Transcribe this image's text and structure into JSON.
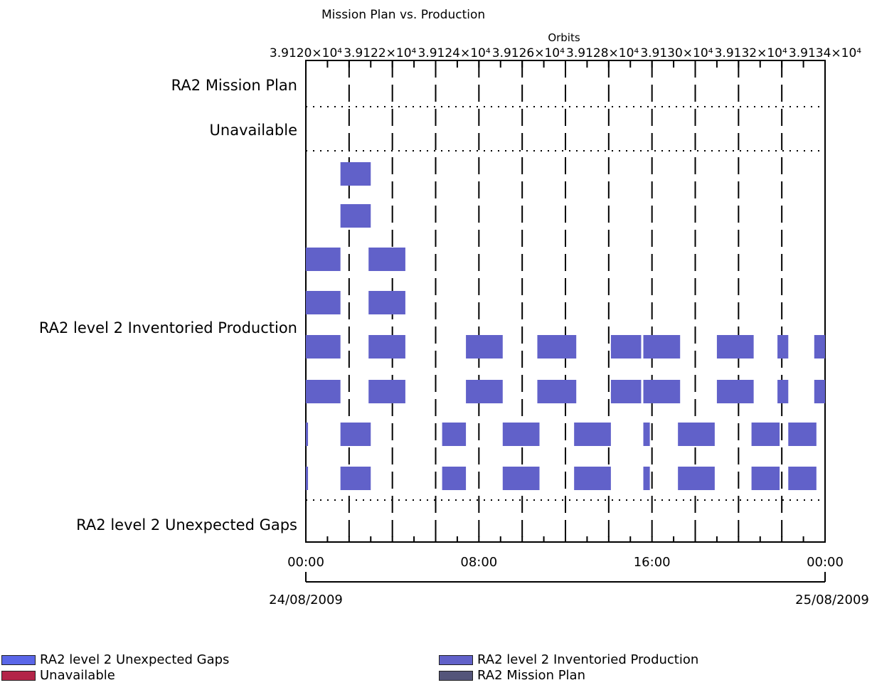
{
  "chart_data": {
    "type": "gantt",
    "title": "Mission Plan vs. Production",
    "top_axis_label": "Orbits",
    "top_ticks": [
      "3.9120×10⁴",
      "3.9122×10⁴",
      "3.9124×10⁴",
      "3.9126×10⁴",
      "3.9128×10⁴",
      "3.9130×10⁴",
      "3.9132×10⁴",
      "3.9134×10⁴"
    ],
    "x_ticks": [
      "00:00",
      "08:00",
      "16:00",
      "00:00"
    ],
    "x_tick_hours": [
      0,
      8,
      16,
      24
    ],
    "date_labels": [
      "24/08/2009",
      "25/08/2009"
    ],
    "x_range_hours": [
      0,
      24
    ],
    "categories": [
      "RA2 Mission Plan",
      "Unavailable",
      "RA2 level 2 Inventoried Production",
      "RA2 level 2 Unexpected Gaps"
    ],
    "production_rows": [
      [
        [
          1.6,
          3.0
        ]
      ],
      [
        [
          1.6,
          3.0
        ]
      ],
      [
        [
          0.0,
          1.6
        ],
        [
          2.9,
          4.6
        ]
      ],
      [
        [
          0.0,
          1.6
        ],
        [
          2.9,
          4.6
        ]
      ],
      [
        [
          0.0,
          1.6
        ],
        [
          2.9,
          4.6
        ],
        [
          7.4,
          9.1
        ],
        [
          10.7,
          12.5
        ],
        [
          14.1,
          15.5
        ],
        [
          15.6,
          17.3
        ],
        [
          19.0,
          20.7
        ],
        [
          21.8,
          22.3
        ],
        [
          23.5,
          24.0
        ]
      ],
      [
        [
          0.0,
          1.6
        ],
        [
          2.9,
          4.6
        ],
        [
          7.4,
          9.1
        ],
        [
          10.7,
          12.5
        ],
        [
          14.1,
          15.5
        ],
        [
          15.6,
          17.3
        ],
        [
          19.0,
          20.7
        ],
        [
          21.8,
          22.3
        ],
        [
          23.5,
          24.0
        ]
      ],
      [
        [
          0.0,
          0.1
        ],
        [
          1.6,
          3.0
        ],
        [
          6.3,
          7.4
        ],
        [
          9.1,
          10.8
        ],
        [
          12.4,
          14.1
        ],
        [
          15.6,
          15.9
        ],
        [
          17.2,
          18.9
        ],
        [
          20.6,
          21.9
        ],
        [
          22.3,
          23.6
        ]
      ],
      [
        [
          0.0,
          0.1
        ],
        [
          1.6,
          3.0
        ],
        [
          6.3,
          7.4
        ],
        [
          9.1,
          10.8
        ],
        [
          12.4,
          14.1
        ],
        [
          15.6,
          15.9
        ],
        [
          17.2,
          18.9
        ],
        [
          20.6,
          21.9
        ],
        [
          22.3,
          23.6
        ]
      ]
    ],
    "series_colors": {
      "RA2 level 2 Unexpected Gaps": "#5a66e8",
      "Unavailable": "#b32548",
      "RA2 level 2 Inventoried Production": "#6161c9",
      "RA2 Mission Plan": "#54557a"
    },
    "bar_color": "#6161c9",
    "legend": [
      {
        "label": "RA2 level 2 Unexpected Gaps",
        "color": "#5a66e8"
      },
      {
        "label": "Unavailable",
        "color": "#b32548"
      },
      {
        "label": "RA2 level 2 Inventoried Production",
        "color": "#6161c9"
      },
      {
        "label": "RA2 Mission Plan",
        "color": "#54557a"
      }
    ]
  }
}
